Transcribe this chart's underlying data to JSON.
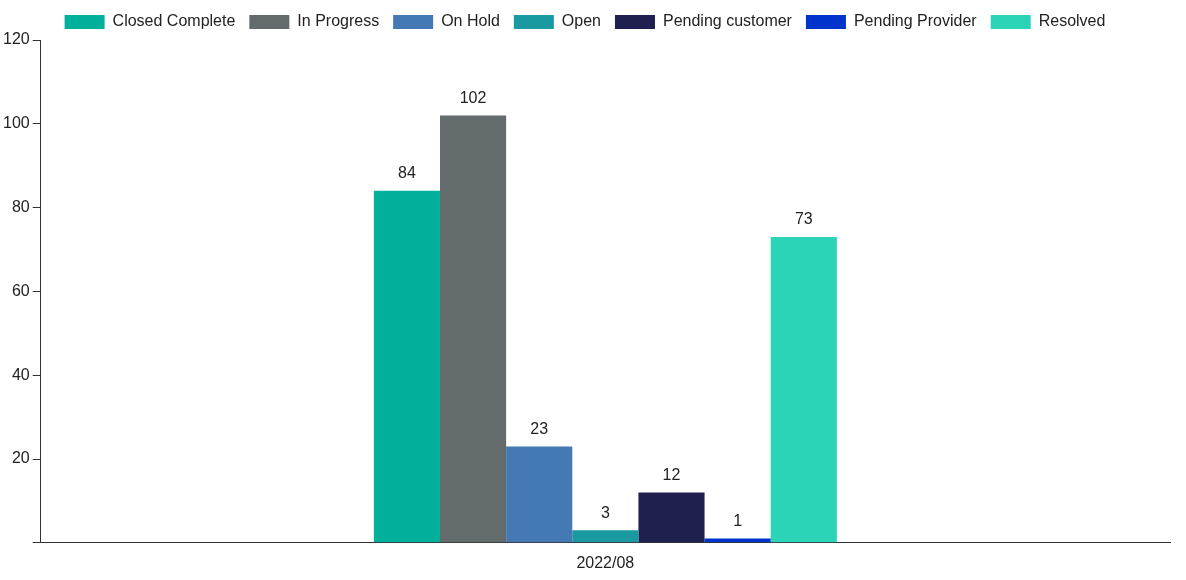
{
  "chart_data": {
    "type": "bar",
    "categories": [
      "2022/08"
    ],
    "series": [
      {
        "name": "Closed Complete",
        "color": "#00b09b",
        "values": [
          84
        ]
      },
      {
        "name": "In Progress",
        "color": "#636b6c",
        "values": [
          102
        ]
      },
      {
        "name": "On Hold",
        "color": "#4479b4",
        "values": [
          23
        ]
      },
      {
        "name": "Open",
        "color": "#1a9aa0",
        "values": [
          3
        ]
      },
      {
        "name": "Pending customer",
        "color": "#1f1f50",
        "values": [
          12
        ]
      },
      {
        "name": "Pending Provider",
        "color": "#0033cc",
        "values": [
          1
        ]
      },
      {
        "name": "Resolved",
        "color": "#2bd4b6",
        "values": [
          73
        ]
      }
    ],
    "ylim": [
      0,
      120
    ],
    "yticks": [
      {
        "value": 0,
        "label": null
      },
      20,
      40,
      60,
      80,
      100,
      120
    ],
    "grid": false,
    "legend": "top",
    "data_labels": true
  }
}
